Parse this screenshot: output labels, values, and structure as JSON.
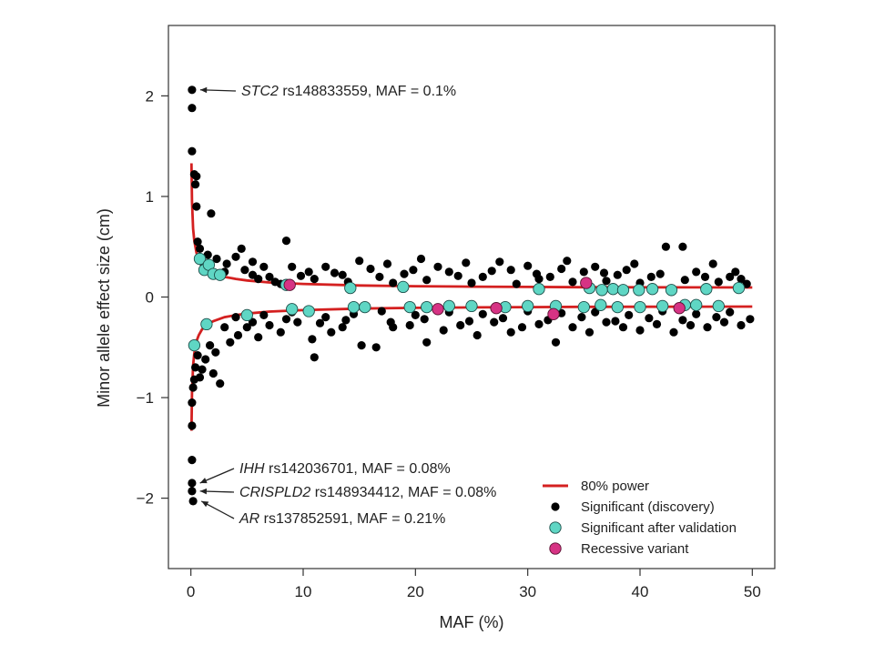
{
  "chart_data": {
    "type": "scatter",
    "xlabel": "MAF (%)",
    "ylabel": "Minor allele effect size (cm)",
    "xlim": [
      -2,
      52
    ],
    "ylim": [
      -2.7,
      2.7
    ],
    "xticks": [
      0,
      10,
      20,
      30,
      40,
      50
    ],
    "xtick_labels": [
      "0",
      "10",
      "20",
      "30",
      "40",
      "50"
    ],
    "yticks": [
      2,
      1,
      0,
      -1,
      -2
    ],
    "ytick_labels": [
      "2",
      "1",
      "0",
      "−1",
      "−2"
    ],
    "colors": {
      "power": "#d42020",
      "discovery": "#000000",
      "validated": "#5fd6c4",
      "recessive": "#d63384",
      "frame": "#333333"
    },
    "annotations": [
      {
        "gene": "STC2",
        "rest": " rs148833559, MAF = 0.1%",
        "point": [
          0.1,
          2.06
        ]
      },
      {
        "gene": "IHH",
        "rest": " rs142036701, MAF = 0.08%",
        "point": [
          0.08,
          -1.85
        ]
      },
      {
        "gene": "CRISPLD2",
        "rest": " rs148934412, MAF = 0.08%",
        "point": [
          0.08,
          -1.93
        ]
      },
      {
        "gene": "AR",
        "rest": " rs137852591, MAF = 0.21%",
        "point": [
          0.21,
          -2.03
        ]
      }
    ],
    "legend": {
      "position": "bottom-right",
      "items": [
        {
          "label": "80% power",
          "kind": "line"
        },
        {
          "label": "Significant (discovery)",
          "kind": "discovery"
        },
        {
          "label": "Significant after validation",
          "kind": "validated"
        },
        {
          "label": "Recessive variant",
          "kind": "recessive"
        }
      ]
    },
    "series": [
      {
        "name": "80% power (upper)",
        "kind": "line",
        "x": [
          0.05,
          0.1,
          0.2,
          0.3,
          0.5,
          0.7,
          1,
          1.5,
          2,
          3,
          4,
          5,
          7,
          10,
          15,
          20,
          25,
          30,
          35,
          40,
          45,
          50
        ],
        "y": [
          1.33,
          0.95,
          0.68,
          0.56,
          0.44,
          0.38,
          0.32,
          0.27,
          0.24,
          0.2,
          0.18,
          0.165,
          0.145,
          0.13,
          0.115,
          0.108,
          0.103,
          0.1,
          0.098,
          0.097,
          0.096,
          0.095
        ]
      },
      {
        "name": "80% power (lower)",
        "kind": "line",
        "x": [
          0.05,
          0.1,
          0.2,
          0.3,
          0.5,
          0.7,
          1,
          1.5,
          2,
          3,
          4,
          5,
          7,
          10,
          15,
          20,
          25,
          30,
          35,
          40,
          45,
          50
        ],
        "y": [
          -1.33,
          -0.95,
          -0.68,
          -0.56,
          -0.44,
          -0.38,
          -0.32,
          -0.27,
          -0.24,
          -0.2,
          -0.18,
          -0.165,
          -0.145,
          -0.13,
          -0.115,
          -0.108,
          -0.103,
          -0.1,
          -0.098,
          -0.097,
          -0.096,
          -0.095
        ]
      },
      {
        "name": "Significant (discovery)",
        "kind": "discovery",
        "points": [
          [
            0.1,
            2.06
          ],
          [
            0.1,
            1.88
          ],
          [
            0.1,
            1.45
          ],
          [
            0.3,
            1.22
          ],
          [
            0.4,
            1.12
          ],
          [
            0.5,
            1.2
          ],
          [
            0.5,
            0.9
          ],
          [
            1.8,
            0.83
          ],
          [
            0.6,
            0.55
          ],
          [
            0.8,
            0.48
          ],
          [
            1.5,
            0.42
          ],
          [
            2.3,
            0.38
          ],
          [
            3.2,
            0.33
          ],
          [
            4.5,
            0.48
          ],
          [
            1.0,
            0.35
          ],
          [
            3.0,
            0.25
          ],
          [
            4.0,
            0.4
          ],
          [
            5.5,
            0.35
          ],
          [
            6.5,
            0.3
          ],
          [
            7.0,
            0.2
          ],
          [
            8.5,
            0.56
          ],
          [
            9.0,
            0.3
          ],
          [
            10.5,
            0.25
          ],
          [
            12.0,
            0.3
          ],
          [
            13.5,
            0.22
          ],
          [
            15.0,
            0.36
          ],
          [
            16.0,
            0.28
          ],
          [
            17.5,
            0.33
          ],
          [
            19.0,
            0.23
          ],
          [
            20.5,
            0.38
          ],
          [
            22.0,
            0.3
          ],
          [
            23.0,
            0.25
          ],
          [
            24.5,
            0.34
          ],
          [
            26.0,
            0.2
          ],
          [
            27.5,
            0.35
          ],
          [
            28.5,
            0.27
          ],
          [
            30.0,
            0.31
          ],
          [
            32.0,
            0.2
          ],
          [
            33.5,
            0.36
          ],
          [
            35.0,
            0.25
          ],
          [
            36.0,
            0.3
          ],
          [
            38.0,
            0.22
          ],
          [
            39.5,
            0.33
          ],
          [
            41.0,
            0.2
          ],
          [
            42.3,
            0.5
          ],
          [
            43.8,
            0.5
          ],
          [
            45.0,
            0.25
          ],
          [
            46.5,
            0.33
          ],
          [
            48.0,
            0.2
          ],
          [
            49.0,
            0.18
          ],
          [
            5.5,
            0.22
          ],
          [
            6.0,
            0.18
          ],
          [
            7.5,
            0.15
          ],
          [
            8.0,
            0.13
          ],
          [
            11.0,
            0.18
          ],
          [
            14.0,
            0.15
          ],
          [
            18.0,
            0.14
          ],
          [
            21.0,
            0.17
          ],
          [
            25.0,
            0.14
          ],
          [
            29.0,
            0.13
          ],
          [
            31.0,
            0.18
          ],
          [
            34.0,
            0.15
          ],
          [
            37.0,
            0.16
          ],
          [
            40.0,
            0.14
          ],
          [
            44.0,
            0.17
          ],
          [
            47.0,
            0.15
          ],
          [
            49.5,
            0.13
          ],
          [
            4.8,
            0.27
          ],
          [
            9.8,
            0.21
          ],
          [
            12.8,
            0.24
          ],
          [
            16.8,
            0.2
          ],
          [
            19.8,
            0.27
          ],
          [
            23.8,
            0.21
          ],
          [
            26.8,
            0.26
          ],
          [
            30.8,
            0.23
          ],
          [
            33.0,
            0.28
          ],
          [
            36.8,
            0.24
          ],
          [
            38.8,
            0.27
          ],
          [
            41.8,
            0.23
          ],
          [
            45.8,
            0.2
          ],
          [
            48.5,
            0.25
          ],
          [
            0.1,
            -1.62
          ],
          [
            0.1,
            -1.85
          ],
          [
            0.1,
            -1.93
          ],
          [
            0.2,
            -2.03
          ],
          [
            0.1,
            -1.28
          ],
          [
            0.1,
            -1.05
          ],
          [
            0.2,
            -0.9
          ],
          [
            0.3,
            -0.82
          ],
          [
            0.4,
            -0.7
          ],
          [
            0.6,
            -0.58
          ],
          [
            0.8,
            -0.8
          ],
          [
            1.0,
            -0.72
          ],
          [
            1.3,
            -0.62
          ],
          [
            2.0,
            -0.76
          ],
          [
            2.6,
            -0.86
          ],
          [
            1.7,
            -0.48
          ],
          [
            2.2,
            -0.55
          ],
          [
            3.5,
            -0.45
          ],
          [
            4.2,
            -0.38
          ],
          [
            5.0,
            -0.3
          ],
          [
            6.0,
            -0.4
          ],
          [
            7.0,
            -0.28
          ],
          [
            8.0,
            -0.35
          ],
          [
            9.5,
            -0.25
          ],
          [
            10.8,
            -0.42
          ],
          [
            11.0,
            -0.6
          ],
          [
            12.5,
            -0.35
          ],
          [
            13.5,
            -0.3
          ],
          [
            15.2,
            -0.48
          ],
          [
            16.5,
            -0.5
          ],
          [
            18.0,
            -0.3
          ],
          [
            19.5,
            -0.28
          ],
          [
            21.0,
            -0.45
          ],
          [
            22.5,
            -0.33
          ],
          [
            24.0,
            -0.28
          ],
          [
            25.5,
            -0.38
          ],
          [
            27.0,
            -0.25
          ],
          [
            28.5,
            -0.35
          ],
          [
            29.5,
            -0.3
          ],
          [
            31.0,
            -0.27
          ],
          [
            32.5,
            -0.45
          ],
          [
            34.0,
            -0.3
          ],
          [
            35.5,
            -0.35
          ],
          [
            37.0,
            -0.25
          ],
          [
            38.5,
            -0.3
          ],
          [
            40.0,
            -0.33
          ],
          [
            41.5,
            -0.27
          ],
          [
            43.0,
            -0.35
          ],
          [
            44.5,
            -0.28
          ],
          [
            46.0,
            -0.3
          ],
          [
            47.5,
            -0.25
          ],
          [
            49.0,
            -0.28
          ],
          [
            4.0,
            -0.2
          ],
          [
            6.5,
            -0.18
          ],
          [
            9.0,
            -0.15
          ],
          [
            12.0,
            -0.2
          ],
          [
            14.5,
            -0.17
          ],
          [
            17.0,
            -0.14
          ],
          [
            20.0,
            -0.18
          ],
          [
            23.0,
            -0.15
          ],
          [
            26.0,
            -0.17
          ],
          [
            30.0,
            -0.14
          ],
          [
            33.0,
            -0.16
          ],
          [
            36.0,
            -0.15
          ],
          [
            39.0,
            -0.18
          ],
          [
            42.0,
            -0.14
          ],
          [
            45.0,
            -0.17
          ],
          [
            48.0,
            -0.15
          ],
          [
            3.0,
            -0.3
          ],
          [
            5.5,
            -0.25
          ],
          [
            8.5,
            -0.22
          ],
          [
            11.5,
            -0.26
          ],
          [
            13.8,
            -0.23
          ],
          [
            17.8,
            -0.25
          ],
          [
            20.8,
            -0.22
          ],
          [
            24.8,
            -0.24
          ],
          [
            27.8,
            -0.21
          ],
          [
            31.8,
            -0.23
          ],
          [
            34.8,
            -0.2
          ],
          [
            37.8,
            -0.24
          ],
          [
            40.8,
            -0.21
          ],
          [
            43.8,
            -0.23
          ],
          [
            46.8,
            -0.2
          ],
          [
            49.8,
            -0.22
          ]
        ]
      },
      {
        "name": "Significant after validation",
        "kind": "validated",
        "points": [
          [
            0.8,
            0.38
          ],
          [
            1.2,
            0.27
          ],
          [
            1.6,
            0.32
          ],
          [
            2.0,
            0.23
          ],
          [
            2.6,
            0.22
          ],
          [
            8.5,
            0.12
          ],
          [
            14.2,
            0.09
          ],
          [
            18.9,
            0.1
          ],
          [
            31.0,
            0.08
          ],
          [
            35.5,
            0.09
          ],
          [
            36.6,
            0.07
          ],
          [
            37.6,
            0.08
          ],
          [
            38.5,
            0.07
          ],
          [
            39.9,
            0.07
          ],
          [
            41.1,
            0.08
          ],
          [
            42.8,
            0.07
          ],
          [
            45.9,
            0.08
          ],
          [
            48.8,
            0.09
          ],
          [
            0.3,
            -0.48
          ],
          [
            1.4,
            -0.27
          ],
          [
            5.0,
            -0.18
          ],
          [
            9.0,
            -0.12
          ],
          [
            10.5,
            -0.14
          ],
          [
            14.5,
            -0.1
          ],
          [
            15.5,
            -0.1
          ],
          [
            19.5,
            -0.1
          ],
          [
            21.0,
            -0.1
          ],
          [
            23.0,
            -0.09
          ],
          [
            25.0,
            -0.09
          ],
          [
            28.0,
            -0.1
          ],
          [
            30.0,
            -0.09
          ],
          [
            32.5,
            -0.09
          ],
          [
            35.0,
            -0.1
          ],
          [
            36.5,
            -0.08
          ],
          [
            38.0,
            -0.1
          ],
          [
            40.0,
            -0.1
          ],
          [
            42.0,
            -0.09
          ],
          [
            44.0,
            -0.08
          ],
          [
            45.0,
            -0.08
          ],
          [
            47.0,
            -0.09
          ]
        ]
      },
      {
        "name": "Recessive variant",
        "kind": "recessive",
        "points": [
          [
            8.8,
            0.12
          ],
          [
            35.2,
            0.14
          ],
          [
            22.0,
            -0.12
          ],
          [
            27.2,
            -0.11
          ],
          [
            32.3,
            -0.17
          ],
          [
            43.5,
            -0.11
          ]
        ]
      }
    ]
  }
}
